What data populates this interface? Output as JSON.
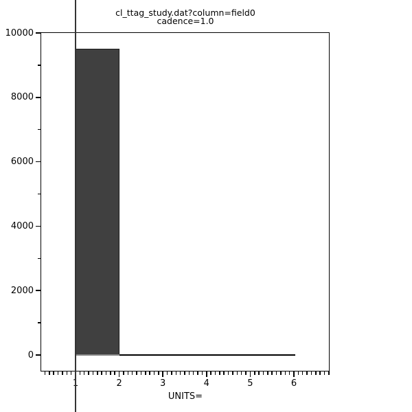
{
  "window": {
    "background": "#ffffff"
  },
  "title": {
    "line1": "cl_ttag_study.dat?column=field0",
    "line2": "cadence=1.0"
  },
  "axes": {
    "x": {
      "label": "UNITS=",
      "major_ticks": [
        1,
        2,
        3,
        4,
        5,
        6
      ],
      "major_tick_labels": [
        "1",
        "2",
        "3",
        "4",
        "5",
        "6"
      ],
      "minor_tick_step": 0.1,
      "range": [
        0.21,
        6.82
      ]
    },
    "y": {
      "major_ticks": [
        10000,
        8000,
        6000,
        4000,
        2000,
        0
      ],
      "major_tick_labels": [
        "10000",
        "8000",
        "6000",
        "4000",
        "2000",
        "0"
      ],
      "minor_ticks": [
        9000,
        7000,
        5000,
        3000,
        1000
      ],
      "range": [
        -512,
        10000
      ]
    }
  },
  "cursor": {
    "x": 1,
    "color": "#333333"
  },
  "colors": {
    "bar_fill": "#404040",
    "bar_edge": "#1a1a1a",
    "axis": "#000000",
    "baseline_gray": "#8a8a8a"
  },
  "chart_data": {
    "type": "bar",
    "subtype": "histogram",
    "title": "cl_ttag_study.dat?column=field0",
    "subtitle": "cadence=1.0",
    "xlabel": "UNITS=",
    "ylabel": "",
    "bin_edges": [
      1,
      2,
      3,
      4,
      5,
      6
    ],
    "values": [
      9510,
      0,
      0,
      0,
      0
    ],
    "xlim": [
      0.21,
      6.82
    ],
    "ylim": [
      -512,
      10000
    ],
    "grid": false,
    "legend": false,
    "bar_color": "#404040",
    "cursor_x": 1
  }
}
